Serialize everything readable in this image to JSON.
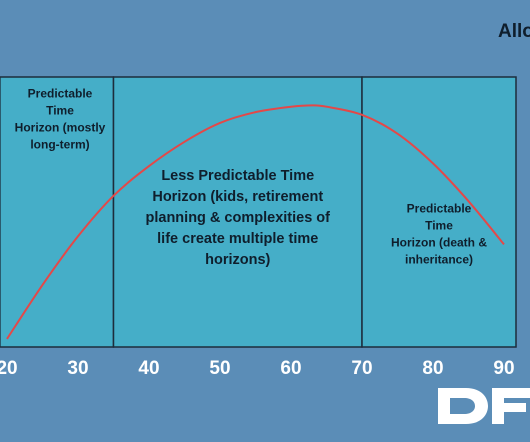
{
  "chart_data": {
    "type": "line",
    "title": "Allo",
    "x_ticks": [
      "20",
      "30",
      "40",
      "50",
      "60",
      "70",
      "80",
      "90"
    ],
    "xlim": [
      19,
      92
    ],
    "ylim": [
      0,
      100
    ],
    "regions": [
      {
        "x_start": 19,
        "x_end": 35,
        "label_lines": [
          "Predictable",
          "Time",
          "Horizon (mostly",
          "long-term)"
        ]
      },
      {
        "x_start": 35,
        "x_end": 70,
        "label_lines": [
          "Less Predictable Time",
          "Horizon (kids, retirement",
          "planning & complexities of",
          "life create multiple time",
          "horizons)"
        ]
      },
      {
        "x_start": 70,
        "x_end": 92,
        "label_lines": [
          "Predictable",
          "Time",
          "Horizon (death &",
          "inheritance)"
        ]
      }
    ],
    "series": [
      {
        "x": [
          20,
          25,
          30,
          35,
          40,
          45,
          50,
          55,
          60,
          63,
          65,
          70,
          75,
          80,
          85,
          90
        ],
        "y": [
          3,
          23,
          41,
          56,
          67,
          76,
          83,
          87,
          89,
          89.5,
          89,
          86,
          79,
          68,
          54,
          38
        ]
      }
    ]
  },
  "logo": {
    "text": "DF"
  },
  "colors": {
    "background": "#5b8db7",
    "panel": "#45aec8",
    "curve": "#e44848",
    "border": "#1d2d3c"
  }
}
